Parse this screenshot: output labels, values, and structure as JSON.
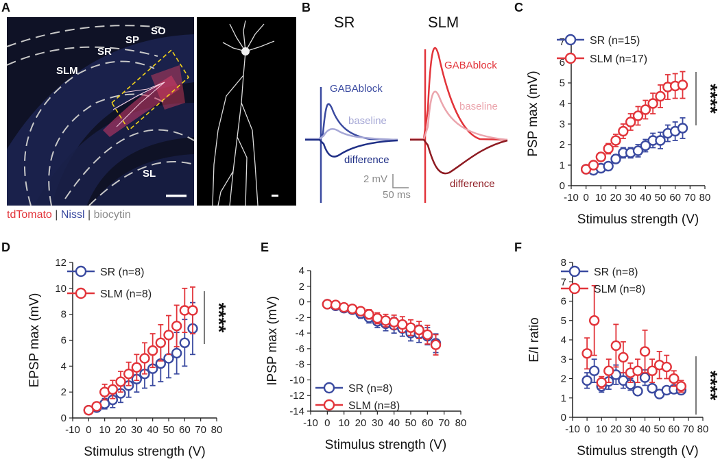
{
  "colors": {
    "sr": "#3a4aa0",
    "slm": "#e2343a",
    "sr_light": "#a6a8d6",
    "slm_light": "#eba5ad",
    "sr_dark": "#1f2f86",
    "slm_dark": "#8e1b22",
    "gray": "#8a8a8a"
  },
  "panel_labels": {
    "a": "A",
    "b": "B",
    "c": "C",
    "d": "D",
    "e": "E",
    "f": "F"
  },
  "panel_a": {
    "layers": [
      "SO",
      "SP",
      "SR",
      "SLM",
      "SL"
    ],
    "stains": {
      "tdtomato": "tdTomato",
      "sep1": " | ",
      "nissl": "Nissl",
      "sep2": " | ",
      "biocytin": "biocytin"
    }
  },
  "panel_b": {
    "sr_title": "SR",
    "slm_title": "SLM",
    "labels": {
      "sr_gaba": "GABAblock",
      "sr_base": "baseline",
      "sr_diff": "difference",
      "slm_gaba": "GABAblock",
      "slm_base": "baseline",
      "slm_diff": "difference"
    },
    "scale": {
      "mv": "2 mV",
      "ms": "50 ms"
    }
  },
  "chart_data": [
    {
      "id": "C",
      "type": "scatter",
      "xlabel": "Stimulus strength (V)",
      "ylabel": "PSP max (mV)",
      "xlim": [
        -10,
        80
      ],
      "ylim": [
        0,
        7
      ],
      "xticks": [
        -10,
        0,
        10,
        20,
        30,
        40,
        50,
        60,
        70,
        80
      ],
      "yticks": [
        0,
        1,
        2,
        3,
        4,
        5,
        6,
        7
      ],
      "significance": "****",
      "series": [
        {
          "name": "SR (n=15)",
          "x": [
            0,
            5,
            10,
            15,
            20,
            25,
            30,
            35,
            40,
            45,
            50,
            55,
            60,
            65
          ],
          "values": [
            0.8,
            0.75,
            0.85,
            0.95,
            1.3,
            1.6,
            1.6,
            1.7,
            1.95,
            2.2,
            2.2,
            2.55,
            2.65,
            2.8
          ],
          "err": [
            0.1,
            0.1,
            0.15,
            0.15,
            0.2,
            0.25,
            0.25,
            0.3,
            0.3,
            0.35,
            0.4,
            0.4,
            0.45,
            0.5
          ]
        },
        {
          "name": "SLM (n=17)",
          "x": [
            0,
            5,
            10,
            15,
            20,
            25,
            30,
            35,
            40,
            45,
            50,
            55,
            60,
            65
          ],
          "values": [
            0.8,
            1.0,
            1.4,
            1.8,
            2.2,
            2.65,
            3.1,
            3.4,
            3.7,
            4.0,
            4.35,
            4.8,
            4.85,
            4.9
          ],
          "err": [
            0.1,
            0.1,
            0.2,
            0.25,
            0.3,
            0.35,
            0.4,
            0.45,
            0.45,
            0.5,
            0.55,
            0.6,
            0.6,
            0.65
          ]
        }
      ]
    },
    {
      "id": "D",
      "type": "scatter",
      "xlabel": "Stimulus strength (V)",
      "ylabel": "EPSP max (mV)",
      "xlim": [
        -10,
        80
      ],
      "ylim": [
        0,
        12
      ],
      "xticks": [
        -10,
        0,
        10,
        20,
        30,
        40,
        50,
        60,
        70,
        80
      ],
      "yticks": [
        0,
        2,
        4,
        6,
        8,
        10,
        12
      ],
      "significance": "****",
      "series": [
        {
          "name": "SR (n=8)",
          "x": [
            0,
            5,
            10,
            15,
            20,
            25,
            30,
            35,
            40,
            45,
            50,
            55,
            60,
            65
          ],
          "values": [
            0.6,
            0.8,
            1.1,
            1.4,
            1.9,
            2.5,
            3.0,
            3.4,
            3.8,
            4.2,
            4.6,
            5.0,
            5.8,
            6.9
          ],
          "err": [
            0.1,
            0.2,
            0.4,
            0.6,
            0.7,
            0.9,
            1.0,
            1.1,
            1.3,
            1.4,
            1.5,
            1.6,
            1.8,
            2.0
          ]
        },
        {
          "name": "SLM (n=8)",
          "x": [
            0,
            5,
            10,
            15,
            20,
            25,
            30,
            35,
            40,
            45,
            50,
            55,
            60,
            65
          ],
          "values": [
            0.6,
            0.9,
            2.0,
            2.2,
            2.8,
            3.4,
            3.9,
            4.6,
            5.2,
            5.8,
            6.4,
            7.1,
            8.3,
            8.3
          ],
          "err": [
            0.1,
            0.2,
            0.6,
            0.7,
            0.8,
            0.9,
            1.0,
            1.2,
            1.3,
            1.4,
            1.5,
            1.6,
            1.7,
            1.8
          ]
        }
      ]
    },
    {
      "id": "E",
      "type": "scatter",
      "xlabel": "Stimulus strength (V)",
      "ylabel": "IPSP max (mV)",
      "xlim": [
        -10,
        80
      ],
      "ylim": [
        -14,
        4
      ],
      "xticks": [
        -10,
        0,
        10,
        20,
        30,
        40,
        50,
        60,
        70,
        80
      ],
      "yticks": [
        -14,
        -12,
        -10,
        -8,
        -6,
        -4,
        -2,
        0,
        2,
        4
      ],
      "significance": "",
      "series": [
        {
          "name": "SR (n=8)",
          "x": [
            0,
            5,
            10,
            15,
            20,
            25,
            30,
            35,
            40,
            45,
            50,
            55,
            60,
            65
          ],
          "values": [
            -0.3,
            -0.5,
            -0.8,
            -1.0,
            -1.5,
            -2.0,
            -2.5,
            -2.8,
            -3.0,
            -3.4,
            -4.0,
            -4.1,
            -4.4,
            -5.3
          ],
          "err": [
            0.1,
            0.2,
            0.3,
            0.4,
            0.6,
            0.7,
            0.8,
            0.9,
            1.0,
            1.0,
            1.0,
            1.1,
            1.1,
            1.2
          ]
        },
        {
          "name": "SLM (n=8)",
          "x": [
            0,
            5,
            10,
            15,
            20,
            25,
            30,
            35,
            40,
            45,
            50,
            55,
            60,
            65
          ],
          "values": [
            -0.3,
            -0.4,
            -0.7,
            -0.9,
            -1.2,
            -1.6,
            -2.1,
            -2.4,
            -2.6,
            -2.9,
            -3.3,
            -3.6,
            -4.2,
            -5.5
          ],
          "err": [
            0.1,
            0.2,
            0.3,
            0.4,
            0.5,
            0.6,
            0.7,
            0.8,
            0.9,
            1.0,
            1.0,
            1.1,
            1.2,
            1.3
          ]
        }
      ]
    },
    {
      "id": "F",
      "type": "scatter",
      "xlabel": "Stimulus strength (V)",
      "ylabel": "E/I ratio",
      "xlim": [
        -10,
        80
      ],
      "ylim": [
        0,
        8
      ],
      "xticks": [
        -10,
        0,
        10,
        20,
        30,
        40,
        50,
        60,
        70,
        80
      ],
      "yticks": [
        0,
        1,
        2,
        3,
        4,
        5,
        6,
        7,
        8
      ],
      "significance": "****",
      "series": [
        {
          "name": "SR (n=8)",
          "x": [
            0,
            5,
            10,
            15,
            20,
            25,
            30,
            35,
            40,
            45,
            50,
            55,
            60,
            65
          ],
          "values": [
            1.9,
            2.4,
            1.6,
            1.85,
            2.2,
            1.9,
            1.7,
            1.35,
            2.05,
            1.5,
            1.2,
            1.4,
            1.45,
            1.4
          ],
          "err": [
            0.4,
            0.6,
            0.3,
            0.4,
            0.5,
            0.4,
            0.3,
            0.2,
            0.4,
            0.2,
            0.15,
            0.15,
            0.2,
            0.15
          ]
        },
        {
          "name": "SLM (n=8)",
          "x": [
            0,
            5,
            10,
            15,
            20,
            25,
            30,
            35,
            40,
            45,
            50,
            55,
            60,
            65
          ],
          "values": [
            3.3,
            5.0,
            1.8,
            2.4,
            3.7,
            3.1,
            2.3,
            2.4,
            3.4,
            2.4,
            2.7,
            2.6,
            2.0,
            1.6
          ],
          "err": [
            0.8,
            1.8,
            0.3,
            0.6,
            1.1,
            0.8,
            0.5,
            0.6,
            1.1,
            0.6,
            0.7,
            0.6,
            0.4,
            0.3
          ]
        }
      ]
    }
  ]
}
